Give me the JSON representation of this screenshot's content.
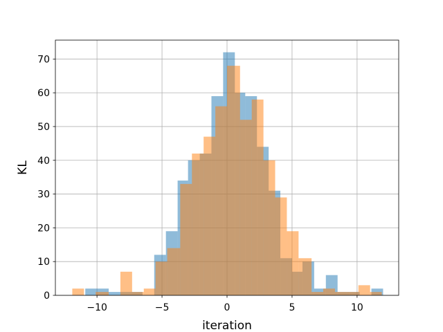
{
  "chart_data": {
    "type": "bar",
    "subtype": "overlapping-histogram",
    "xlabel": "iteration",
    "ylabel": "KL",
    "xlim": [
      -13.2,
      13.2
    ],
    "ylim": [
      0,
      75.6
    ],
    "xticks": [
      -10,
      -5,
      0,
      5,
      10
    ],
    "yticks": [
      0,
      10,
      20,
      30,
      40,
      50,
      60,
      70
    ],
    "grid": true,
    "series": [
      {
        "color": "#1f77b4",
        "alpha": 0.5,
        "bins": [
          {
            "x0": -10.9,
            "x1": -10.0,
            "count": 2
          },
          {
            "x0": -10.0,
            "x1": -9.1,
            "count": 2
          },
          {
            "x0": -9.1,
            "x1": -8.3,
            "count": 1
          },
          {
            "x0": -8.3,
            "x1": -7.4,
            "count": 1
          },
          {
            "x0": -7.4,
            "x1": -6.5,
            "count": 1
          },
          {
            "x0": -6.5,
            "x1": -5.6,
            "count": 0
          },
          {
            "x0": -5.6,
            "x1": -4.7,
            "count": 12
          },
          {
            "x0": -4.7,
            "x1": -3.8,
            "count": 19
          },
          {
            "x0": -3.8,
            "x1": -3.0,
            "count": 34
          },
          {
            "x0": -3.0,
            "x1": -2.1,
            "count": 40
          },
          {
            "x0": -2.1,
            "x1": -1.2,
            "count": 42
          },
          {
            "x0": -1.2,
            "x1": -0.3,
            "count": 59
          },
          {
            "x0": -0.3,
            "x1": 0.6,
            "count": 72
          },
          {
            "x0": 0.6,
            "x1": 1.4,
            "count": 60
          },
          {
            "x0": 1.4,
            "x1": 2.3,
            "count": 59
          },
          {
            "x0": 2.3,
            "x1": 3.2,
            "count": 44
          },
          {
            "x0": 3.2,
            "x1": 4.1,
            "count": 31
          },
          {
            "x0": 4.1,
            "x1": 5.0,
            "count": 11
          },
          {
            "x0": 5.0,
            "x1": 5.8,
            "count": 7
          },
          {
            "x0": 5.8,
            "x1": 6.7,
            "count": 10
          },
          {
            "x0": 6.7,
            "x1": 7.6,
            "count": 2
          },
          {
            "x0": 7.6,
            "x1": 8.5,
            "count": 6
          },
          {
            "x0": 8.5,
            "x1": 9.4,
            "count": 1
          },
          {
            "x0": 9.4,
            "x1": 10.2,
            "count": 1
          },
          {
            "x0": 10.2,
            "x1": 11.1,
            "count": 0
          },
          {
            "x0": 11.1,
            "x1": 12.0,
            "count": 2
          }
        ]
      },
      {
        "color": "#ff7f0e",
        "alpha": 0.5,
        "bins": [
          {
            "x0": -11.9,
            "x1": -11.0,
            "count": 2
          },
          {
            "x0": -11.0,
            "x1": -10.1,
            "count": 0
          },
          {
            "x0": -10.1,
            "x1": -9.1,
            "count": 1
          },
          {
            "x0": -9.1,
            "x1": -8.2,
            "count": 0
          },
          {
            "x0": -8.2,
            "x1": -7.3,
            "count": 7
          },
          {
            "x0": -7.3,
            "x1": -6.4,
            "count": 1
          },
          {
            "x0": -6.4,
            "x1": -5.5,
            "count": 2
          },
          {
            "x0": -5.5,
            "x1": -4.6,
            "count": 10
          },
          {
            "x0": -4.6,
            "x1": -3.6,
            "count": 14
          },
          {
            "x0": -3.6,
            "x1": -2.7,
            "count": 33
          },
          {
            "x0": -2.7,
            "x1": -1.8,
            "count": 42
          },
          {
            "x0": -1.8,
            "x1": -0.9,
            "count": 47
          },
          {
            "x0": -0.9,
            "x1": 0.0,
            "count": 56
          },
          {
            "x0": 0.0,
            "x1": 1.0,
            "count": 68
          },
          {
            "x0": 1.0,
            "x1": 1.9,
            "count": 52
          },
          {
            "x0": 1.9,
            "x1": 2.8,
            "count": 58
          },
          {
            "x0": 2.8,
            "x1": 3.7,
            "count": 40
          },
          {
            "x0": 3.7,
            "x1": 4.6,
            "count": 29
          },
          {
            "x0": 4.6,
            "x1": 5.5,
            "count": 19
          },
          {
            "x0": 5.5,
            "x1": 6.5,
            "count": 11
          },
          {
            "x0": 6.5,
            "x1": 7.4,
            "count": 1
          },
          {
            "x0": 7.4,
            "x1": 8.3,
            "count": 2
          },
          {
            "x0": 8.3,
            "x1": 9.2,
            "count": 1
          },
          {
            "x0": 9.2,
            "x1": 10.1,
            "count": 1
          },
          {
            "x0": 10.1,
            "x1": 11.0,
            "count": 3
          },
          {
            "x0": 11.0,
            "x1": 11.9,
            "count": 1
          }
        ]
      }
    ]
  }
}
